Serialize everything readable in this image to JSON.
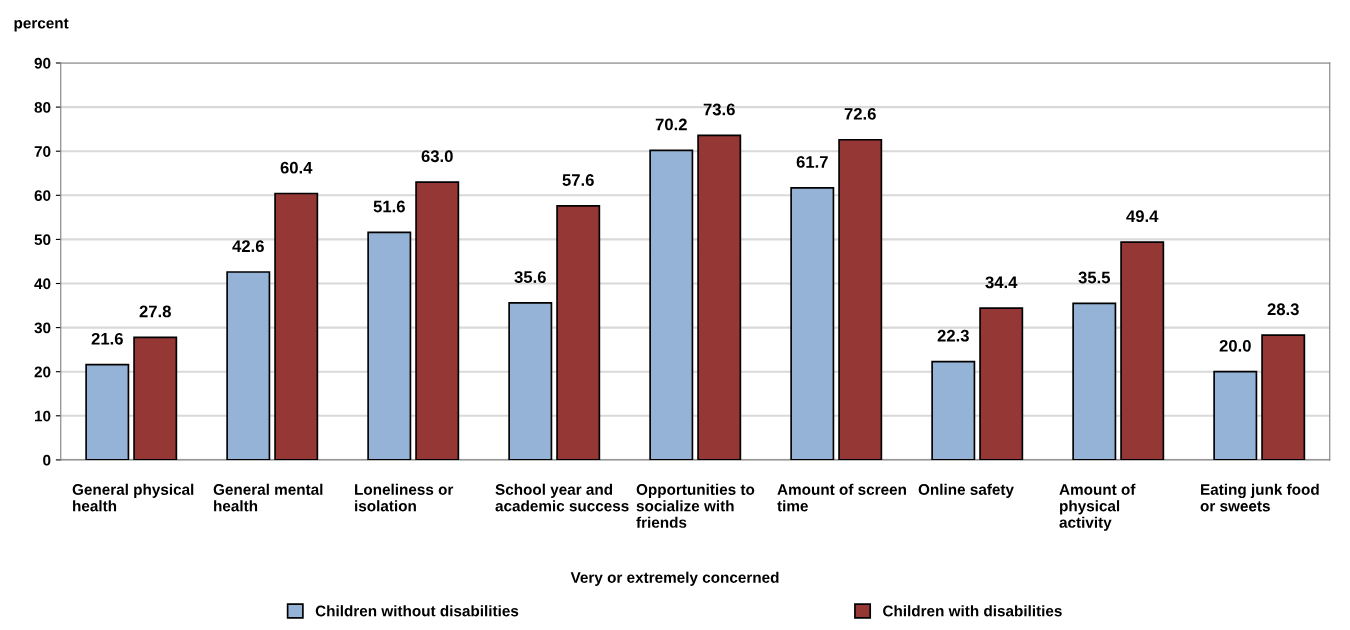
{
  "chart_data": {
    "type": "bar",
    "ylabel": "percent",
    "xlabel": "Very or extremely concerned",
    "categories": [
      "General physical health",
      "General mental health",
      "Loneliness or isolation",
      "School year and academic success",
      "Opportunities to socialize with friends",
      "Amount of screen time",
      "Online safety",
      "Amount of physical activity",
      "Eating junk food or sweets"
    ],
    "series": [
      {
        "name": "Children without disabilities",
        "color": "#95b3d7",
        "values": [
          21.6,
          42.6,
          51.6,
          35.6,
          70.2,
          61.7,
          22.3,
          35.5,
          20.0
        ],
        "value_labels": [
          "21.6",
          "42.6",
          "51.6",
          "35.6",
          "70.2",
          "61.7",
          "22.3",
          "35.5",
          "20.0"
        ]
      },
      {
        "name": "Children with disabilities",
        "color": "#953735",
        "values": [
          27.8,
          60.4,
          63.0,
          57.6,
          73.6,
          72.6,
          34.4,
          49.4,
          28.3
        ],
        "value_labels": [
          "27.8",
          "60.4",
          "63.0",
          "57.6",
          "73.6",
          "72.6",
          "34.4",
          "49.4",
          "28.3"
        ]
      }
    ],
    "ylim": [
      0,
      90
    ],
    "yticks": [
      0,
      10,
      20,
      30,
      40,
      50,
      60,
      70,
      80,
      90
    ],
    "grid": "y",
    "legend": "bottom"
  }
}
